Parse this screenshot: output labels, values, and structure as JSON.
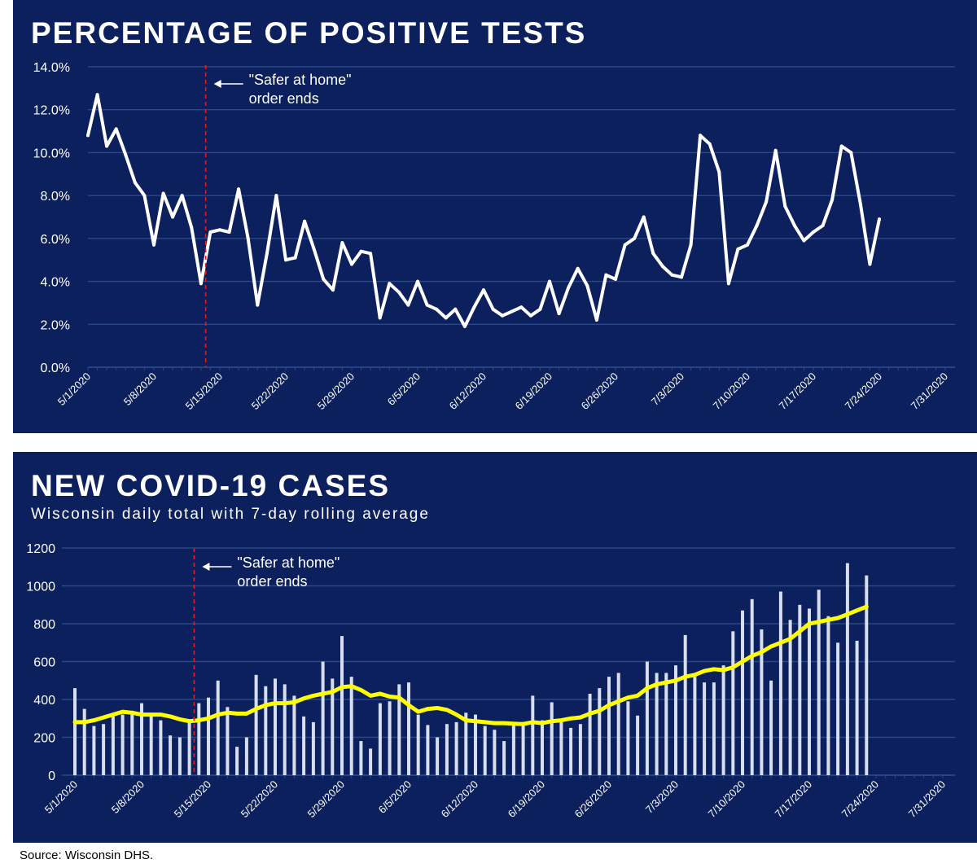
{
  "source": "Source: Wisconsin DHS.",
  "colors": {
    "background": "#0b205c",
    "grid": "#2a4787",
    "line": "#ffffff",
    "bar": "#d6deef",
    "rolling": "#ffff00",
    "marker": "#e31b23"
  },
  "x_ticks": [
    "5/1/2020",
    "5/8/2020",
    "5/15/2020",
    "5/22/2020",
    "5/29/2020",
    "6/5/2020",
    "6/12/2020",
    "6/19/2020",
    "6/26/2020",
    "7/3/2020",
    "7/10/2020",
    "7/17/2020",
    "7/24/2020",
    "7/31/2020"
  ],
  "chart_data": [
    {
      "type": "line",
      "title": "PERCENTAGE OF POSITIVE TESTS",
      "x_label_ticks": [
        "5/1/2020",
        "5/8/2020",
        "5/15/2020",
        "5/22/2020",
        "5/29/2020",
        "6/5/2020",
        "6/12/2020",
        "6/19/2020",
        "6/26/2020",
        "7/3/2020",
        "7/10/2020",
        "7/17/2020",
        "7/24/2020",
        "7/31/2020"
      ],
      "y_ticks": [
        "0.0%",
        "2.0%",
        "4.0%",
        "6.0%",
        "8.0%",
        "10.0%",
        "12.0%",
        "14.0%"
      ],
      "ylim": [
        0,
        14
      ],
      "xlim_days": [
        0,
        91
      ],
      "start_date": "5/1/2020",
      "values": [
        10.8,
        12.7,
        10.3,
        11.1,
        9.9,
        8.6,
        8.0,
        5.7,
        8.1,
        7.0,
        8.0,
        6.5,
        3.9,
        6.3,
        6.4,
        6.3,
        8.3,
        6.0,
        2.9,
        5.3,
        8.0,
        5.0,
        5.1,
        6.8,
        5.5,
        4.1,
        3.6,
        5.8,
        4.8,
        5.4,
        5.3,
        2.3,
        3.9,
        3.5,
        2.9,
        4.0,
        2.9,
        2.7,
        2.3,
        2.7,
        1.9,
        2.8,
        3.6,
        2.7,
        2.4,
        2.6,
        2.8,
        2.4,
        2.7,
        4.0,
        2.5,
        3.7,
        4.6,
        3.8,
        2.2,
        4.3,
        4.1,
        5.7,
        6.0,
        7.0,
        5.3,
        4.7,
        4.3,
        4.2,
        5.7,
        10.8,
        10.4,
        9.1,
        3.9,
        5.5,
        5.7,
        6.6,
        7.7,
        10.1,
        7.5,
        6.6,
        5.9,
        6.3,
        6.6,
        7.8,
        10.3,
        10.0,
        7.6,
        4.8,
        6.9
      ],
      "annotation": {
        "date": "5/13/2020",
        "line1": "\"Safer at home\"",
        "line2": "order ends"
      }
    },
    {
      "type": "bar",
      "title": "NEW COVID-19 CASES",
      "subtitle": "Wisconsin daily total with 7-day rolling average",
      "x_label_ticks": [
        "5/1/2020",
        "5/8/2020",
        "5/15/2020",
        "5/22/2020",
        "5/29/2020",
        "6/5/2020",
        "6/12/2020",
        "6/19/2020",
        "6/26/2020",
        "7/3/2020",
        "7/10/2020",
        "7/17/2020",
        "7/24/2020",
        "7/31/2020"
      ],
      "y_ticks": [
        "0",
        "200",
        "400",
        "600",
        "800",
        "1000",
        "1200"
      ],
      "ylim": [
        0,
        1200
      ],
      "xlim_days": [
        0,
        91
      ],
      "start_date": "5/1/2020",
      "series": [
        {
          "name": "Daily cases",
          "type": "bar",
          "values": [
            460,
            350,
            260,
            270,
            310,
            320,
            340,
            380,
            325,
            290,
            210,
            200,
            280,
            380,
            410,
            500,
            360,
            150,
            200,
            530,
            470,
            510,
            480,
            420,
            310,
            280,
            600,
            510,
            735,
            520,
            180,
            140,
            380,
            390,
            480,
            490,
            320,
            265,
            200,
            270,
            280,
            330,
            320,
            260,
            240,
            180,
            270,
            280,
            420,
            290,
            385,
            280,
            250,
            270,
            430,
            460,
            520,
            540,
            390,
            315,
            600,
            540,
            540,
            580,
            740,
            520,
            490,
            490,
            580,
            760,
            870,
            930,
            770,
            500,
            970,
            820,
            900,
            880,
            980,
            840,
            700,
            1120,
            710,
            1055
          ],
          "note": "Daily bar heights from 5/1/2020 to 7/24/2020"
        },
        {
          "name": "7-day rolling average",
          "type": "line",
          "values": [
            280,
            280,
            290,
            305,
            320,
            335,
            330,
            320,
            320,
            320,
            310,
            295,
            285,
            290,
            300,
            320,
            330,
            325,
            325,
            350,
            370,
            380,
            380,
            385,
            405,
            420,
            430,
            440,
            465,
            470,
            450,
            420,
            430,
            415,
            410,
            370,
            335,
            350,
            355,
            345,
            320,
            290,
            285,
            280,
            275,
            275,
            272,
            270,
            280,
            275,
            285,
            290,
            300,
            305,
            325,
            340,
            370,
            390,
            410,
            420,
            460,
            480,
            490,
            500,
            520,
            530,
            550,
            560,
            555,
            570,
            600,
            630,
            650,
            680,
            700,
            720,
            760,
            800,
            810,
            820,
            830,
            850,
            870,
            890
          ]
        }
      ],
      "annotation": {
        "date": "5/13/2020",
        "line1": "\"Safer at home\"",
        "line2": "order ends"
      }
    }
  ]
}
